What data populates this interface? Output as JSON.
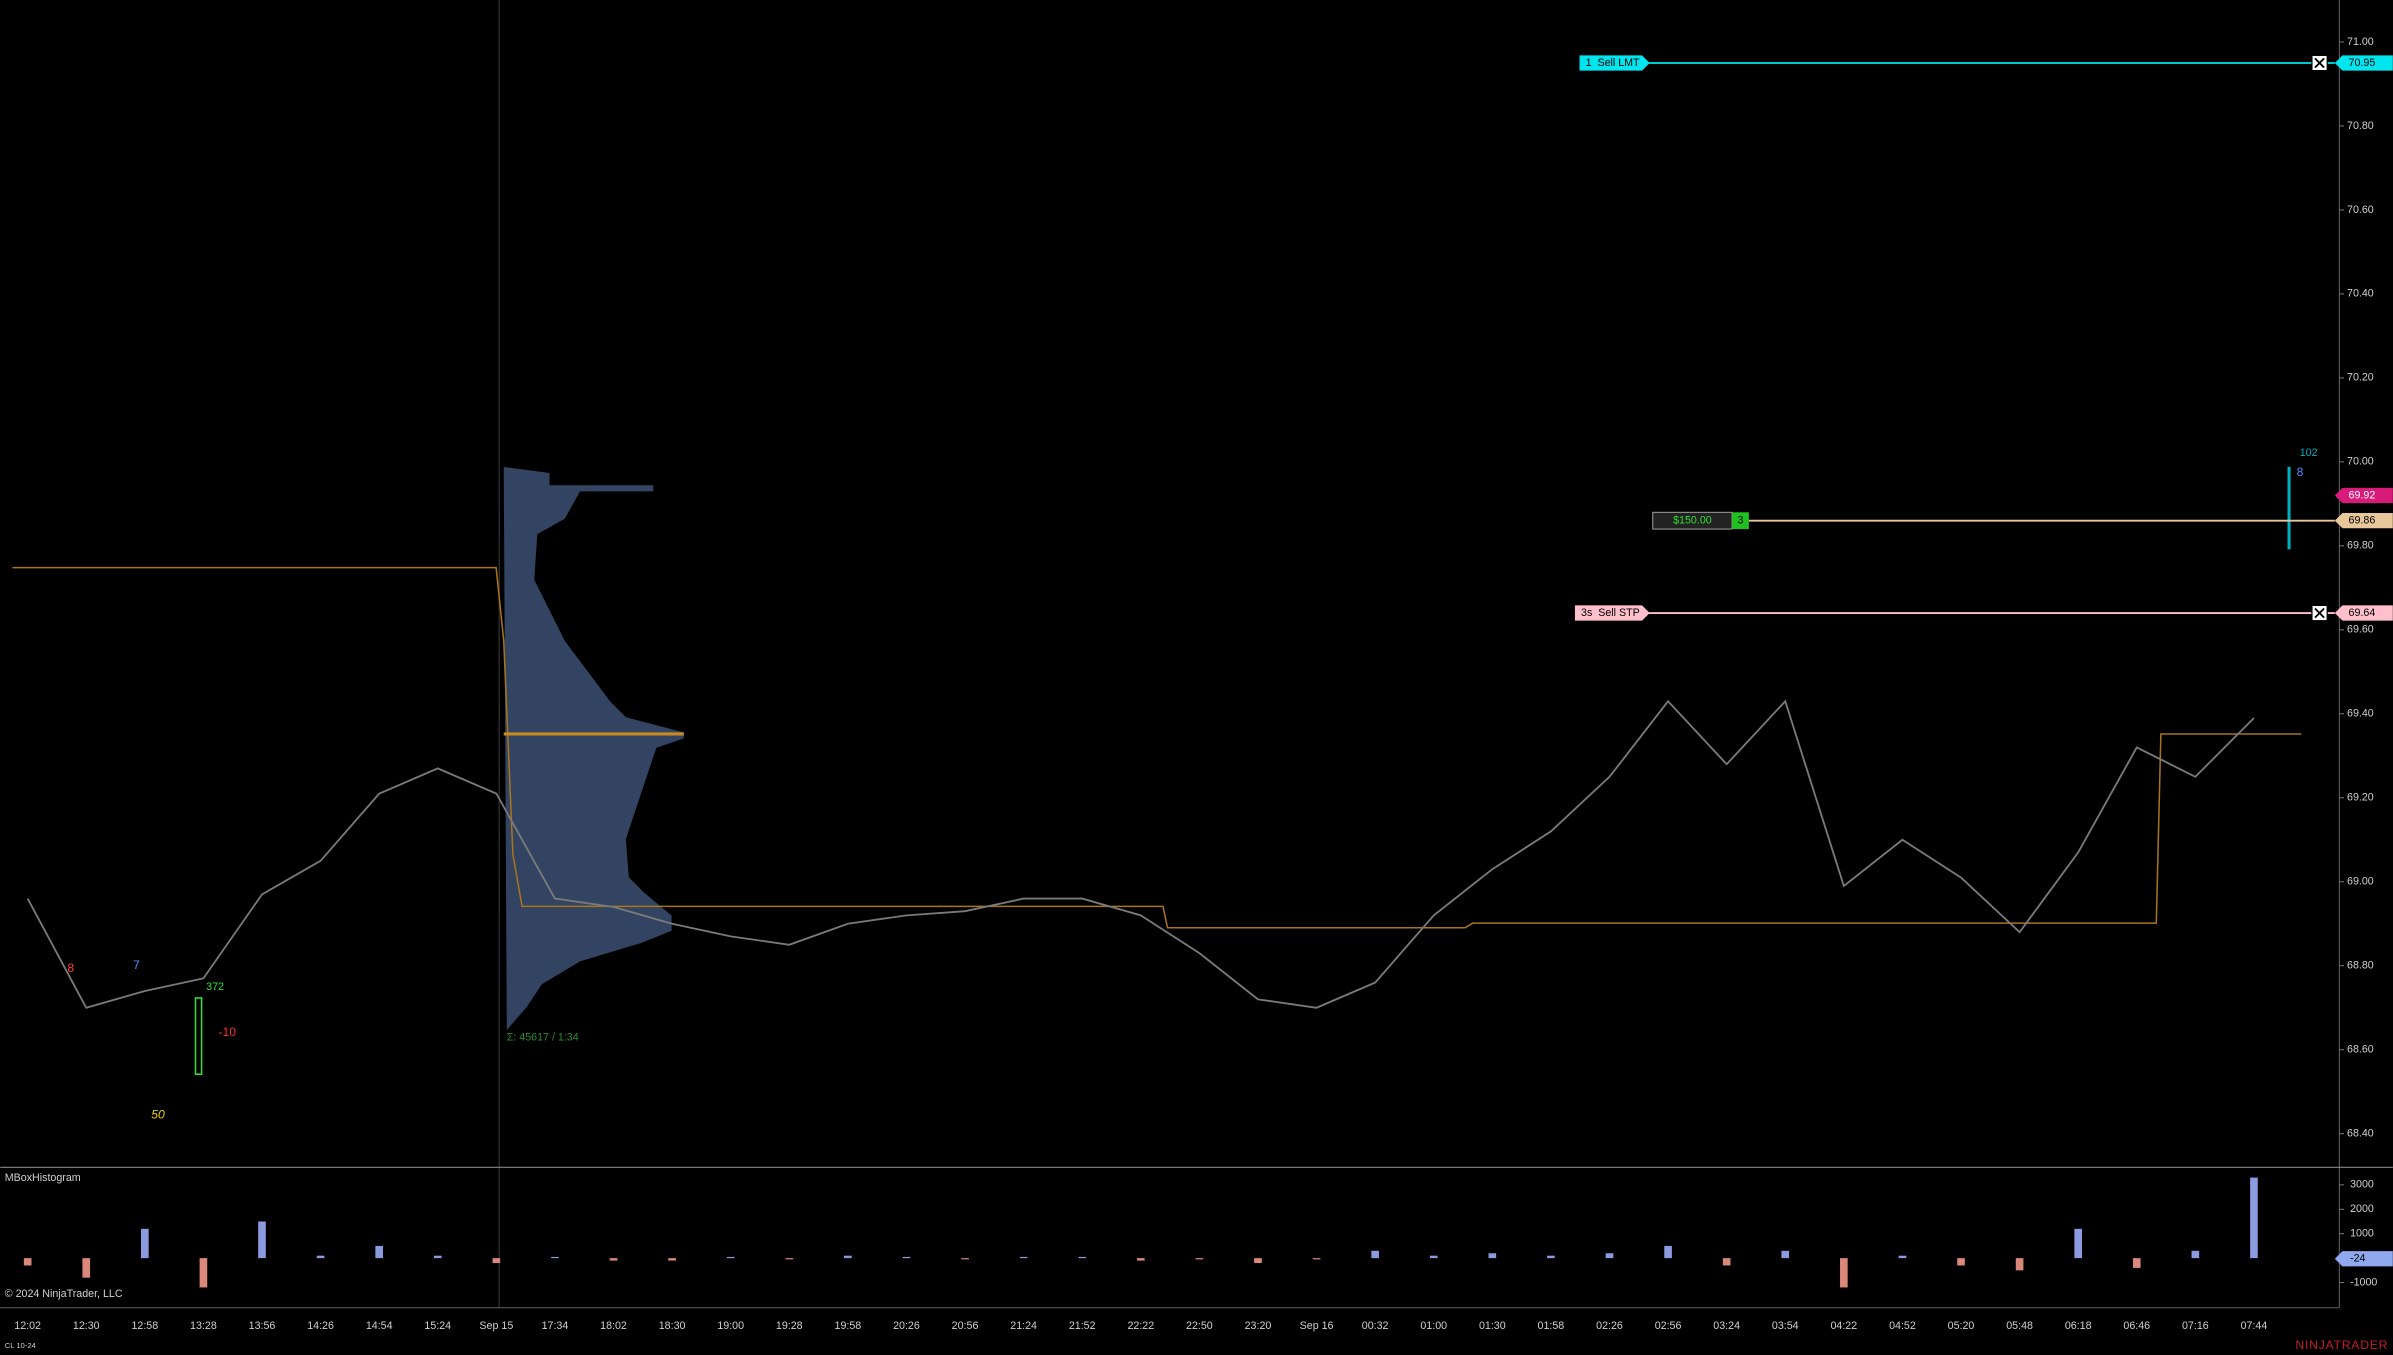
{
  "chart_data": [
    {
      "type": "line",
      "color": "#7a7a7a",
      "categories": [
        "12:02",
        "12:30",
        "12:58",
        "13:28",
        "13:56",
        "14:26",
        "14:54",
        "15:24",
        "Sep 15",
        "17:34",
        "18:02",
        "18:30",
        "19:00",
        "19:28",
        "19:58",
        "20:26",
        "20:56",
        "21:24",
        "21:52",
        "22:22",
        "22:50",
        "23:20",
        "Sep 16",
        "00:32",
        "01:00",
        "01:30",
        "01:58",
        "02:26",
        "02:56",
        "03:24",
        "03:54",
        "04:22",
        "04:52",
        "05:20",
        "05:48",
        "06:18",
        "06:46",
        "07:16",
        "07:44"
      ],
      "values": [
        68.96,
        68.7,
        68.74,
        68.77,
        68.97,
        69.05,
        69.21,
        69.27,
        69.21,
        68.96,
        68.94,
        68.9,
        68.87,
        68.85,
        68.9,
        68.92,
        68.93,
        68.96,
        68.96,
        68.92,
        68.83,
        68.72,
        68.7,
        68.76,
        68.92,
        69.03,
        69.12,
        69.25,
        69.43,
        69.28,
        69.43,
        68.99,
        69.1,
        69.01,
        68.88,
        69.07,
        69.32,
        69.25,
        69.39
      ],
      "ylim": [
        68.32,
        71.1
      ],
      "yticks": [
        {
          "value": 68.4,
          "label": "68.40"
        },
        {
          "value": 68.6,
          "label": "68.60"
        },
        {
          "value": 68.8,
          "label": "68.80"
        },
        {
          "value": 69,
          "label": "69.00"
        },
        {
          "value": 69.2,
          "label": "69.20"
        },
        {
          "value": 69.4,
          "label": "69.40"
        },
        {
          "value": 69.6,
          "label": "69.60"
        },
        {
          "value": 69.8,
          "label": "69.80"
        },
        {
          "value": 70,
          "label": "70.00"
        },
        {
          "value": 70.2,
          "label": "70.20"
        },
        {
          "value": 70.4,
          "label": "70.40"
        },
        {
          "value": 70.6,
          "label": "70.60"
        },
        {
          "value": 70.8,
          "label": "70.80"
        },
        {
          "value": 71,
          "label": "71.00"
        }
      ],
      "last_price": 69.92,
      "last_price_color": "#d81b7a"
    },
    {
      "type": "bar",
      "title": "MBoxHistogram",
      "positive_color": "#8c9ae0",
      "negative_color": "#d9887a",
      "values": [
        -300,
        -800,
        1200,
        -1200,
        1500,
        100,
        500,
        100,
        -200,
        50,
        -100,
        -100,
        50,
        -50,
        100,
        50,
        -50,
        50,
        50,
        -100,
        -50,
        -200,
        -50,
        300,
        100,
        200,
        100,
        200,
        500,
        -300,
        300,
        -1200,
        100,
        -300,
        -500,
        1200,
        -400,
        300,
        3300
      ],
      "ylim": [
        -2030,
        3720
      ],
      "yticks": [
        -1000,
        1000,
        2000,
        3000
      ],
      "current_value": -24,
      "current_color": "#8fa8ee"
    }
  ],
  "orders": [
    {
      "text": "1  Sell LMT",
      "price": 70.95,
      "color": "#00e5ee"
    },
    {
      "text": "3s  Sell STP",
      "price": 69.64,
      "color": "#ffc0cb"
    }
  ],
  "position": {
    "pnl": "$150.00",
    "qty": 3,
    "price": 69.86,
    "color": "#e8c79a"
  },
  "annotations": [
    {
      "text": "8",
      "color": "#ff4040"
    },
    {
      "text": "7",
      "color": "#4f8cff"
    },
    {
      "text": "372",
      "color": "#30e030"
    },
    {
      "text": "-10",
      "color": "#ff3030"
    },
    {
      "text": "50",
      "color": "#e8d000"
    },
    {
      "text": "Σ: 45617 / 1:34",
      "color": "#2e8b2e"
    },
    {
      "text": "102",
      "color": "#00b0c0"
    },
    {
      "text": "8",
      "color": "#4f8cff"
    }
  ],
  "footer": {
    "copyright": "© 2024 NinjaTrader, LLC",
    "instrument": "CL 10-24",
    "logo": "NINJATRADER"
  }
}
